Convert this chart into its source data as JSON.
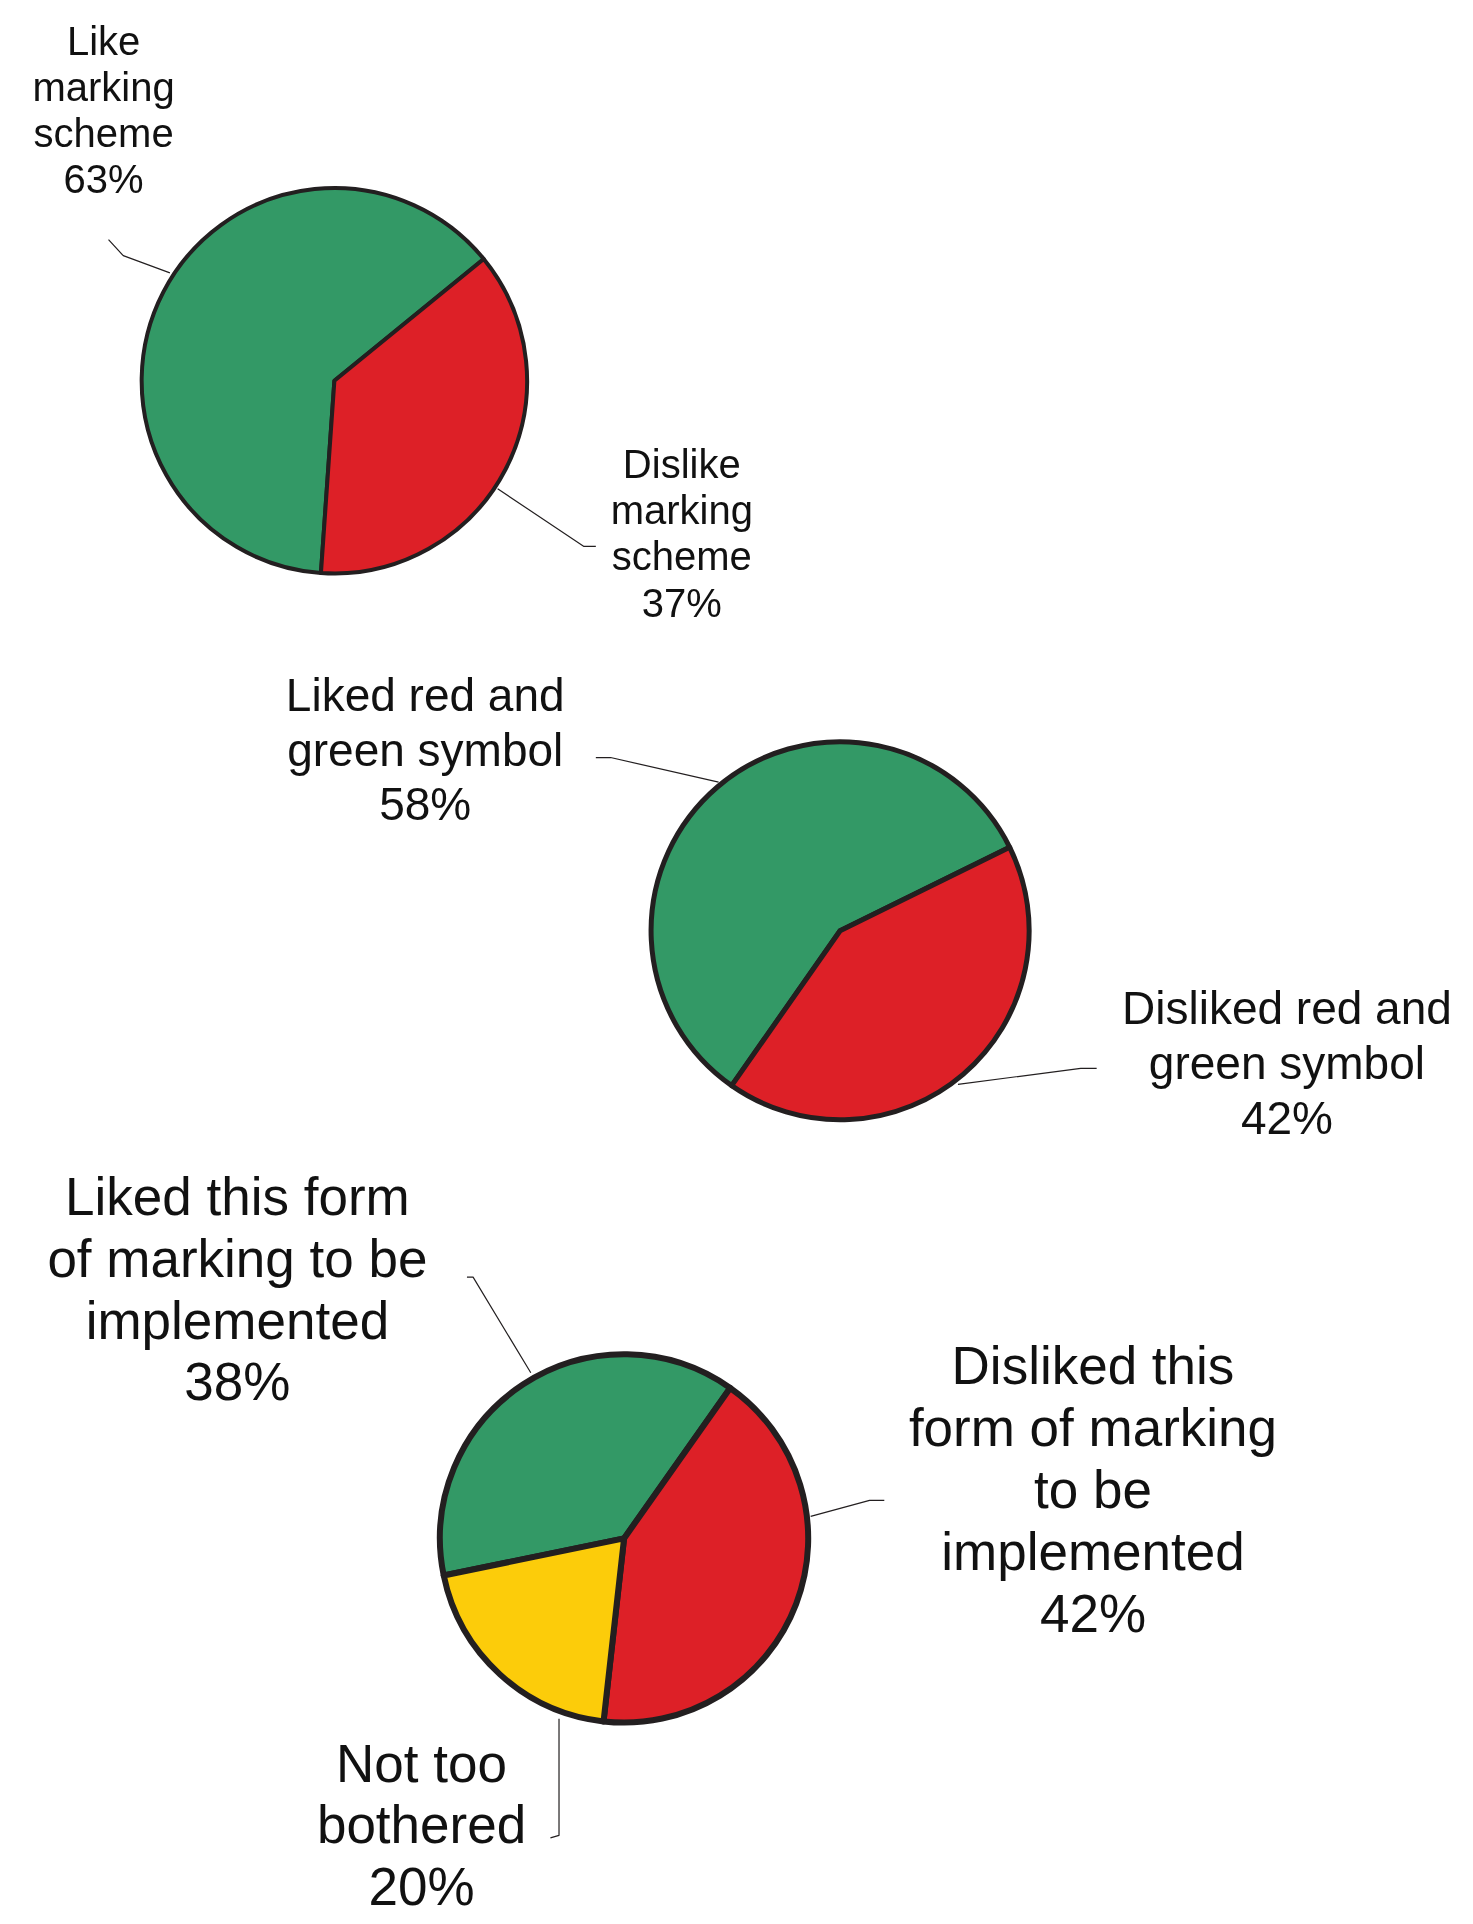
{
  "chart_data": [
    {
      "type": "pie",
      "categories": [
        "Like marking scheme",
        "Dislike marking scheme"
      ],
      "values": [
        63,
        37
      ],
      "colors": [
        "#339966",
        "#dd2027"
      ],
      "value_labels": [
        "63%",
        "37%"
      ]
    },
    {
      "type": "pie",
      "categories": [
        "Liked red and green symbol",
        "Disliked red and green symbol"
      ],
      "values": [
        58,
        42
      ],
      "colors": [
        "#339966",
        "#dd2027"
      ],
      "value_labels": [
        "58%",
        "42%"
      ]
    },
    {
      "type": "pie",
      "categories": [
        "Liked this form of marking to be implemented",
        "Disliked this form of marking to be implemented",
        "Not too bothered"
      ],
      "values": [
        38,
        42,
        20
      ],
      "colors": [
        "#339966",
        "#dd2027",
        "#fccc0a"
      ],
      "value_labels": [
        "38%",
        "42%",
        "20%"
      ]
    }
  ]
}
